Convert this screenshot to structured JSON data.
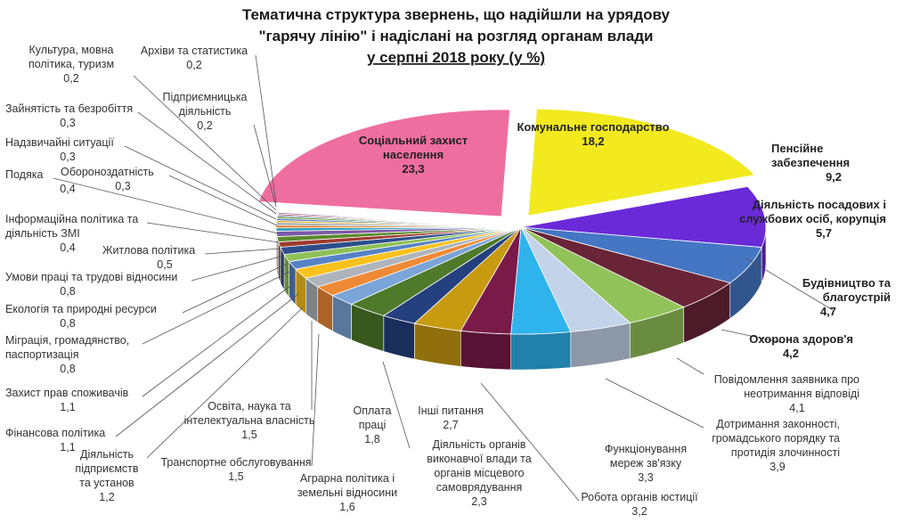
{
  "chart_data": {
    "type": "pie",
    "title_lines": [
      "Тематична структура звернень, що надійшли на урядову",
      "\"гарячу лінію\" і надіслані на розгляд органам влади",
      "у серпні 2018 року (у %)"
    ],
    "slices": [
      {
        "name": "Комунальне господарство",
        "value": 18.2,
        "color": "#f2ea1e",
        "exploded": true
      },
      {
        "name": "Пенсійне забезпечення",
        "value": 9.2,
        "color": "#6a2ad8"
      },
      {
        "name": "Діяльність посадових і службових осіб, корупція",
        "value": 5.7,
        "color": "#4476c4"
      },
      {
        "name": "Будівництво та благоустрій",
        "value": 4.7,
        "color": "#6a2438"
      },
      {
        "name": "Охорона здоров'я",
        "value": 4.2,
        "color": "#92c25a"
      },
      {
        "name": "Повідомлення заявника про неотримання відповіді",
        "value": 4.1,
        "color": "#c2d3ea"
      },
      {
        "name": "Дотримання законності, громадського порядку та протидія злочинності",
        "value": 3.9,
        "color": "#2fb3ec"
      },
      {
        "name": "Функціонування мереж зв'язку",
        "value": 3.3,
        "color": "#7a1a48"
      },
      {
        "name": "Робота органів юстиції",
        "value": 3.2,
        "color": "#c89a10"
      },
      {
        "name": "Діяльність органів виконавчої влади та органів місцевого самоврядування",
        "value": 2.3,
        "color": "#24407e"
      },
      {
        "name": "Інші питання",
        "value": 2.7,
        "color": "#4e7a2a"
      },
      {
        "name": "Оплата праці",
        "value": 1.8,
        "color": "#7ba4d8"
      },
      {
        "name": "Аграрна політика і земельні відносини",
        "value": 1.6,
        "color": "#ee8a36"
      },
      {
        "name": "Транспортне обслуговування",
        "value": 1.5,
        "color": "#aeb4bc"
      },
      {
        "name": "Освіта, наука та інтелектуальна власність",
        "value": 1.5,
        "color": "#f8c21e"
      },
      {
        "name": "Діяльність підприємств та установ",
        "value": 1.2,
        "color": "#5682c6"
      },
      {
        "name": "Фінансова політика",
        "value": 1.1,
        "color": "#8fc057"
      },
      {
        "name": "Захист прав споживачів",
        "value": 1.1,
        "color": "#2c4f8c"
      },
      {
        "name": "Міграція, громадянство, паспортизація",
        "value": 0.8,
        "color": "#9e3a2e"
      },
      {
        "name": "Екологія та природні ресурси",
        "value": 0.8,
        "color": "#5a8a2a"
      },
      {
        "name": "Умови праці та трудові відносини",
        "value": 0.8,
        "color": "#7b5aa6"
      },
      {
        "name": "Житлова політика",
        "value": 0.5,
        "color": "#2a9fb8"
      },
      {
        "name": "Інформаційна політика та діяльність ЗМІ",
        "value": 0.4,
        "color": "#e0781e"
      },
      {
        "name": "Подяка",
        "value": 0.4,
        "color": "#9aa0a8"
      },
      {
        "name": "Обороноздатність",
        "value": 0.3,
        "color": "#d8a81e"
      },
      {
        "name": "Надзвичайні ситуації",
        "value": 0.3,
        "color": "#4a72b8"
      },
      {
        "name": "Зайнятість та безробіття",
        "value": 0.3,
        "color": "#6a9c3a"
      },
      {
        "name": "Культура, мовна політика, туризм",
        "value": 0.2,
        "color": "#3a5a94"
      },
      {
        "name": "Підприємницька діяльність",
        "value": 0.2,
        "color": "#b04a3a"
      },
      {
        "name": "Архіви та статистика",
        "value": 0.2,
        "color": "#8a6aaa"
      },
      {
        "name": "Соціальний захист населення",
        "value": 23.3,
        "color": "#ef6ea0"
      }
    ],
    "labels": [
      {
        "lines": [
          "Комунальне господарство"
        ],
        "value": "18,2",
        "bold": true
      },
      {
        "lines": [
          "Пенсійне",
          "забезпечення"
        ],
        "value": "9,2",
        "bold": true
      },
      {
        "lines": [
          "Діяльність посадових і",
          "службових осіб, корупція"
        ],
        "value": "5,7",
        "bold": true
      },
      {
        "lines": [
          "Будівництво та",
          "благоустрій"
        ],
        "value": "4,7",
        "bold": true
      },
      {
        "lines": [
          "Охорона здоров'я"
        ],
        "value": "4,2",
        "bold": true
      },
      {
        "lines": [
          "Повідомлення заявника про",
          "неотримання відповіді"
        ],
        "value": "4,1"
      },
      {
        "lines": [
          "Дотримання законності,",
          "громадського порядку та",
          "протидія злочинності"
        ],
        "value": "3,9"
      },
      {
        "lines": [
          "Функціонування",
          "мереж зв'язку"
        ],
        "value": "3,3"
      },
      {
        "lines": [
          "Робота органів юстиції"
        ],
        "value": "3,2"
      },
      {
        "lines": [
          "Діяльність органів",
          "виконавчої влади та",
          "органів місцевого",
          "самоврядування"
        ],
        "value": "2,3"
      },
      {
        "lines": [
          "Інші питання"
        ],
        "value": "2,7"
      },
      {
        "lines": [
          "Оплата",
          "праці"
        ],
        "value": "1,8"
      },
      {
        "lines": [
          "Аграрна політика і",
          "земельні відносини"
        ],
        "value": "1,6"
      },
      {
        "lines": [
          "Транспортне обслуговування"
        ],
        "value": "1,5"
      },
      {
        "lines": [
          "Освіта, наука та",
          "інтелектуальна власність"
        ],
        "value": "1,5"
      },
      {
        "lines": [
          "Діяльність",
          "підприємств",
          "та установ"
        ],
        "value": "1,2"
      },
      {
        "lines": [
          "Фінансова політика"
        ],
        "value": "1,1"
      },
      {
        "lines": [
          "Захист прав споживачів"
        ],
        "value": "1,1"
      },
      {
        "lines": [
          "Міграція, громадянство,",
          "паспортизація"
        ],
        "value": "0,8"
      },
      {
        "lines": [
          "Екологія та природні ресурси"
        ],
        "value": "0,8"
      },
      {
        "lines": [
          "Умови праці та трудові відносини"
        ],
        "value": "0,8"
      },
      {
        "lines": [
          "Житлова політика"
        ],
        "value": "0,5"
      },
      {
        "lines": [
          "Інформаційна політика та",
          "діяльність ЗМІ"
        ],
        "value": "0,4"
      },
      {
        "lines": [
          "Подяка"
        ],
        "value": "0,4"
      },
      {
        "lines": [
          "Обороноздатність"
        ],
        "value": "0,3"
      },
      {
        "lines": [
          "Надзвичайні ситуації"
        ],
        "value": "0,3"
      },
      {
        "lines": [
          "Зайнятість та безробіття"
        ],
        "value": "0,3"
      },
      {
        "lines": [
          "Культура, мовна",
          "політика, туризм"
        ],
        "value": "0,2"
      },
      {
        "lines": [
          "Підприємницька",
          "діяльність"
        ],
        "value": "0,2"
      },
      {
        "lines": [
          "Архіви та статистика"
        ],
        "value": "0,2"
      },
      {
        "lines": [
          "Соціальний захист",
          "населення"
        ],
        "value": "23,3",
        "bold": true
      }
    ]
  }
}
